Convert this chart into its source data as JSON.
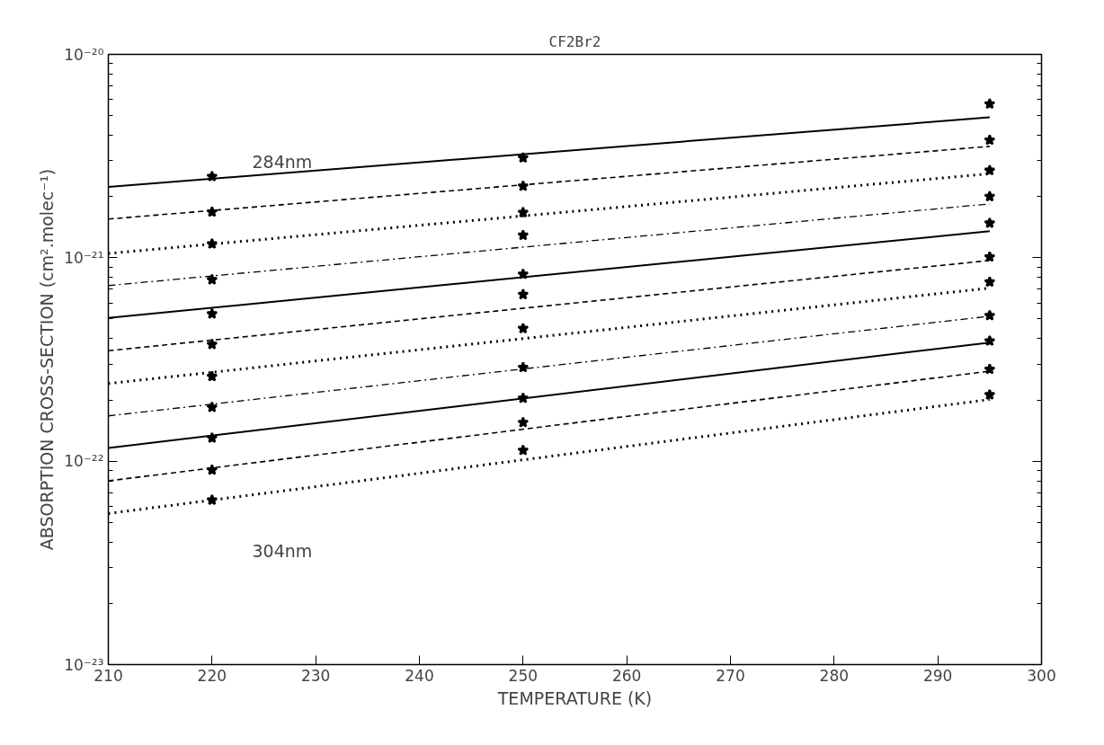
{
  "chart_data": {
    "type": "line",
    "title": "CF2Br2",
    "xlabel": "TEMPERATURE (K)",
    "ylabel": "ABSORPTION CROSS-SECTION (cm².molec⁻¹)",
    "log": "y",
    "grid": false,
    "xlim": [
      210,
      300
    ],
    "xticks": [
      210,
      220,
      230,
      240,
      250,
      260,
      270,
      280,
      290,
      300
    ],
    "ylim": [
      1e-23,
      1e-20
    ],
    "yticks": [
      {
        "value": 1e-23,
        "label": "10⁻²³"
      },
      {
        "value": 1e-22,
        "label": "10⁻²²"
      },
      {
        "value": 1e-21,
        "label": "10⁻²¹"
      },
      {
        "value": 1e-20,
        "label": "10⁻²⁰"
      }
    ],
    "series": [
      {
        "color": "#000000",
        "line_style": "solid",
        "x": [
          210,
          295
        ],
        "values": [
          2.23e-21,
          4.9e-21
        ]
      },
      {
        "type": "line",
        "color": "#000000",
        "line_style": "dashed",
        "x": [
          210,
          295
        ],
        "values": [
          1.55e-21,
          3.53e-21
        ]
      },
      {
        "type": "line",
        "color": "#000000",
        "line_style": "dotted",
        "x": [
          210,
          295
        ],
        "values": [
          1.05e-21,
          2.59e-21
        ]
      },
      {
        "type": "line",
        "color": "#000000",
        "line_style": "dashdot",
        "x": [
          210,
          295
        ],
        "values": [
          7.3e-22,
          1.84e-21
        ]
      },
      {
        "type": "line",
        "color": "#000000",
        "line_style": "solid",
        "x": [
          210,
          295
        ],
        "values": [
          5.06e-22,
          1.35e-21
        ]
      },
      {
        "type": "line",
        "color": "#000000",
        "line_style": "dashed",
        "x": [
          210,
          295
        ],
        "values": [
          3.49e-22,
          9.7e-22
        ]
      },
      {
        "type": "line",
        "color": "#000000",
        "line_style": "dotted",
        "x": [
          210,
          295
        ],
        "values": [
          2.41e-22,
          7.1e-22
        ]
      },
      {
        "type": "line",
        "color": "#000000",
        "line_style": "dashdot",
        "x": [
          210,
          295
        ],
        "values": [
          1.67e-22,
          5.16e-22
        ]
      },
      {
        "type": "line",
        "color": "#000000",
        "line_style": "solid",
        "x": [
          210,
          295
        ],
        "values": [
          1.16e-22,
          3.83e-22
        ]
      },
      {
        "type": "line",
        "color": "#000000",
        "line_style": "dashed",
        "x": [
          210,
          295
        ],
        "values": [
          8e-23,
          2.77e-22
        ]
      },
      {
        "type": "line",
        "color": "#000000",
        "line_style": "dotted",
        "x": [
          210,
          295
        ],
        "values": [
          5.53e-23,
          2.01e-22
        ]
      },
      {
        "type": "scatter",
        "color": "#000000",
        "marker": "star",
        "x": [
          220,
          220,
          220,
          220,
          220,
          220,
          220,
          220,
          220,
          220,
          220,
          250,
          250,
          250,
          250,
          250,
          250,
          250,
          250,
          250,
          250,
          250,
          295,
          295,
          295,
          295,
          295,
          295,
          295,
          295,
          295,
          295,
          295
        ],
        "values": [
          2.51e-21,
          1.68e-21,
          1.17e-21,
          7.8e-22,
          5.3e-22,
          3.75e-22,
          2.61e-22,
          1.84e-22,
          1.3e-22,
          9.05e-23,
          6.44e-23,
          3.1e-21,
          2.25e-21,
          1.67e-21,
          1.29e-21,
          8.3e-22,
          6.6e-22,
          4.49e-22,
          2.89e-22,
          2.04e-22,
          1.55e-22,
          1.13e-22,
          5.71e-21,
          3.79e-21,
          2.69e-21,
          2e-21,
          1.48e-21,
          1.01e-21,
          7.6e-22,
          5.2e-22,
          3.9e-22,
          2.83e-22,
          2.12e-22
        ]
      }
    ],
    "annotations": [
      "284nm",
      "304nm"
    ]
  }
}
